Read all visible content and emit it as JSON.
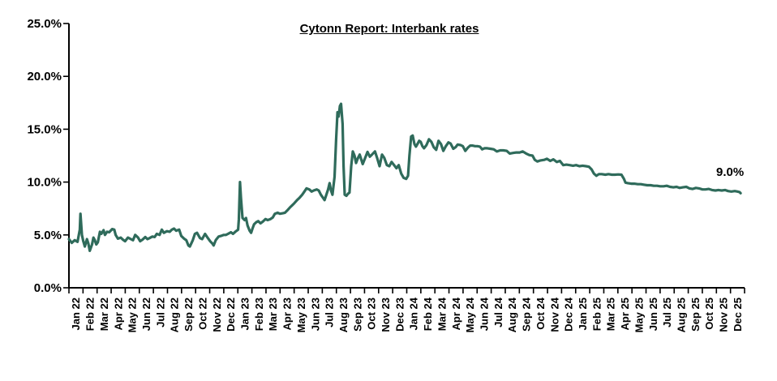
{
  "chart_data": {
    "type": "line",
    "title": "Cytonn Report: Interbank rates",
    "end_label": "9.0%",
    "xlabel": "",
    "ylabel": "",
    "ylim": [
      0,
      25
    ],
    "grid": false,
    "legend_position": "none",
    "line_color": "#2F6B5B",
    "axis_color": "#000000",
    "y_ticks": [
      "0.0%",
      "5.0%",
      "10.0%",
      "15.0%",
      "20.0%",
      "25.0%"
    ],
    "x_categories": [
      "Jan 22",
      "Feb 22",
      "Mar 22",
      "Apr 22",
      "May 22",
      "Jun 22",
      "Jul 22",
      "Aug 22",
      "Sep 22",
      "Oct 22",
      "Nov 22",
      "Dec 22",
      "Jan 23",
      "Feb 23",
      "Mar 23",
      "Apr 23",
      "May 23",
      "Jun 23",
      "Jul 23",
      "Aug 23",
      "Sep 23",
      "Oct 23",
      "Nov 23",
      "Dec 23",
      "Jan 24",
      "Feb 24",
      "Mar 24",
      "Apr 24",
      "May 24",
      "Jun 24",
      "Jul 24",
      "Aug 24",
      "Sep 24",
      "Oct 24",
      "Nov 24",
      "Dec 24",
      "Jan 25",
      "Feb 25",
      "Mar 25",
      "Apr 25",
      "May 25",
      "Jun 25",
      "Jul 25",
      "Aug 25",
      "Sep 25",
      "Oct 25",
      "Nov 25",
      "Dec 25"
    ],
    "x_unit": "months since Jan 2022 (fractional)",
    "y_unit": "percent",
    "series": [
      {
        "name": "Interbank rate",
        "points": [
          [
            0,
            4.6
          ],
          [
            0.2,
            4.25
          ],
          [
            0.41,
            4.5
          ],
          [
            0.61,
            4.35
          ],
          [
            0.77,
            5.5
          ],
          [
            0.82,
            7.0
          ],
          [
            0.92,
            5.0
          ],
          [
            1.02,
            4.4
          ],
          [
            1.13,
            3.9
          ],
          [
            1.28,
            4.6
          ],
          [
            1.38,
            4.2
          ],
          [
            1.48,
            3.5
          ],
          [
            1.64,
            4.1
          ],
          [
            1.74,
            4.75
          ],
          [
            1.84,
            4.5
          ],
          [
            1.94,
            4.1
          ],
          [
            2.05,
            4.3
          ],
          [
            2.2,
            5.3
          ],
          [
            2.3,
            5.1
          ],
          [
            2.46,
            5.45
          ],
          [
            2.56,
            5.0
          ],
          [
            2.71,
            5.3
          ],
          [
            2.86,
            5.25
          ],
          [
            3.07,
            5.55
          ],
          [
            3.22,
            5.5
          ],
          [
            3.32,
            5.0
          ],
          [
            3.48,
            4.65
          ],
          [
            3.68,
            4.75
          ],
          [
            3.84,
            4.55
          ],
          [
            3.99,
            4.4
          ],
          [
            4.19,
            4.75
          ],
          [
            4.4,
            4.6
          ],
          [
            4.55,
            4.5
          ],
          [
            4.71,
            5.0
          ],
          [
            4.91,
            4.75
          ],
          [
            5.06,
            4.4
          ],
          [
            5.22,
            4.55
          ],
          [
            5.42,
            4.8
          ],
          [
            5.58,
            4.6
          ],
          [
            5.73,
            4.7
          ],
          [
            5.93,
            4.85
          ],
          [
            6.09,
            4.8
          ],
          [
            6.24,
            5.1
          ],
          [
            6.44,
            5.0
          ],
          [
            6.6,
            5.5
          ],
          [
            6.75,
            5.2
          ],
          [
            6.96,
            5.35
          ],
          [
            7.16,
            5.3
          ],
          [
            7.31,
            5.5
          ],
          [
            7.47,
            5.6
          ],
          [
            7.62,
            5.4
          ],
          [
            7.83,
            5.5
          ],
          [
            7.98,
            4.9
          ],
          [
            8.18,
            4.65
          ],
          [
            8.34,
            4.5
          ],
          [
            8.49,
            4.0
          ],
          [
            8.59,
            3.9
          ],
          [
            8.8,
            4.5
          ],
          [
            8.95,
            5.1
          ],
          [
            9.1,
            5.2
          ],
          [
            9.31,
            4.7
          ],
          [
            9.46,
            4.6
          ],
          [
            9.67,
            5.1
          ],
          [
            9.82,
            4.8
          ],
          [
            10.03,
            4.4
          ],
          [
            10.18,
            4.2
          ],
          [
            10.28,
            4.0
          ],
          [
            10.43,
            4.5
          ],
          [
            10.64,
            4.85
          ],
          [
            10.79,
            4.9
          ],
          [
            11.0,
            5.0
          ],
          [
            11.15,
            5.0
          ],
          [
            11.3,
            5.1
          ],
          [
            11.51,
            5.25
          ],
          [
            11.66,
            5.1
          ],
          [
            11.82,
            5.3
          ],
          [
            12.02,
            5.5
          ],
          [
            12.07,
            6.5
          ],
          [
            12.15,
            10.0
          ],
          [
            12.22,
            8.5
          ],
          [
            12.33,
            6.6
          ],
          [
            12.48,
            6.4
          ],
          [
            12.58,
            6.6
          ],
          [
            12.69,
            5.9
          ],
          [
            12.84,
            5.4
          ],
          [
            12.94,
            5.2
          ],
          [
            13.04,
            5.6
          ],
          [
            13.15,
            6.0
          ],
          [
            13.3,
            6.2
          ],
          [
            13.45,
            6.3
          ],
          [
            13.61,
            6.1
          ],
          [
            13.81,
            6.3
          ],
          [
            13.96,
            6.5
          ],
          [
            14.12,
            6.4
          ],
          [
            14.32,
            6.5
          ],
          [
            14.48,
            6.65
          ],
          [
            14.63,
            7.0
          ],
          [
            14.83,
            7.1
          ],
          [
            14.99,
            7.0
          ],
          [
            15.19,
            7.05
          ],
          [
            15.35,
            7.1
          ],
          [
            15.5,
            7.3
          ],
          [
            15.7,
            7.6
          ],
          [
            15.86,
            7.8
          ],
          [
            16.01,
            8.0
          ],
          [
            16.21,
            8.3
          ],
          [
            16.37,
            8.5
          ],
          [
            16.57,
            8.8
          ],
          [
            16.73,
            9.1
          ],
          [
            16.88,
            9.4
          ],
          [
            17.08,
            9.3
          ],
          [
            17.24,
            9.1
          ],
          [
            17.39,
            9.2
          ],
          [
            17.6,
            9.3
          ],
          [
            17.75,
            9.2
          ],
          [
            17.9,
            8.8
          ],
          [
            18.06,
            8.5
          ],
          [
            18.16,
            8.3
          ],
          [
            18.26,
            8.7
          ],
          [
            18.41,
            9.3
          ],
          [
            18.52,
            9.9
          ],
          [
            18.62,
            9.2
          ],
          [
            18.72,
            8.8
          ],
          [
            18.87,
            10.5
          ],
          [
            18.98,
            14.0
          ],
          [
            19.08,
            16.6
          ],
          [
            19.16,
            16.2
          ],
          [
            19.25,
            17.2
          ],
          [
            19.33,
            17.4
          ],
          [
            19.44,
            15.5
          ],
          [
            19.51,
            11.5
          ],
          [
            19.59,
            8.8
          ],
          [
            19.71,
            8.7
          ],
          [
            19.83,
            8.9
          ],
          [
            19.93,
            9.0
          ],
          [
            20.05,
            11.5
          ],
          [
            20.17,
            12.9
          ],
          [
            20.29,
            12.5
          ],
          [
            20.4,
            11.8
          ],
          [
            20.51,
            12.2
          ],
          [
            20.66,
            12.6
          ],
          [
            20.87,
            11.7
          ],
          [
            21.02,
            12.2
          ],
          [
            21.21,
            12.85
          ],
          [
            21.38,
            12.4
          ],
          [
            21.53,
            12.6
          ],
          [
            21.74,
            12.9
          ],
          [
            21.89,
            12.3
          ],
          [
            22.07,
            11.5
          ],
          [
            22.24,
            12.6
          ],
          [
            22.4,
            12.3
          ],
          [
            22.59,
            11.6
          ],
          [
            22.76,
            11.5
          ],
          [
            22.92,
            11.9
          ],
          [
            23.1,
            11.6
          ],
          [
            23.27,
            11.3
          ],
          [
            23.43,
            11.6
          ],
          [
            23.61,
            10.8
          ],
          [
            23.78,
            10.4
          ],
          [
            23.96,
            10.3
          ],
          [
            24.09,
            10.6
          ],
          [
            24.19,
            12.5
          ],
          [
            24.31,
            14.3
          ],
          [
            24.42,
            14.4
          ],
          [
            24.55,
            13.6
          ],
          [
            24.65,
            13.35
          ],
          [
            24.76,
            13.6
          ],
          [
            24.88,
            13.9
          ],
          [
            24.99,
            13.8
          ],
          [
            25.11,
            13.4
          ],
          [
            25.23,
            13.2
          ],
          [
            25.4,
            13.5
          ],
          [
            25.58,
            14.05
          ],
          [
            25.75,
            13.8
          ],
          [
            25.92,
            13.3
          ],
          [
            26.09,
            13.05
          ],
          [
            26.26,
            13.9
          ],
          [
            26.43,
            13.6
          ],
          [
            26.6,
            12.95
          ],
          [
            26.78,
            13.4
          ],
          [
            26.96,
            13.75
          ],
          [
            27.11,
            13.65
          ],
          [
            27.31,
            13.15
          ],
          [
            27.47,
            13.3
          ],
          [
            27.62,
            13.55
          ],
          [
            27.83,
            13.5
          ],
          [
            27.98,
            13.4
          ],
          [
            28.16,
            12.95
          ],
          [
            28.34,
            13.25
          ],
          [
            28.51,
            13.45
          ],
          [
            28.67,
            13.45
          ],
          [
            28.85,
            13.4
          ],
          [
            29.02,
            13.4
          ],
          [
            29.2,
            13.35
          ],
          [
            29.36,
            13.1
          ],
          [
            29.53,
            13.2
          ],
          [
            29.72,
            13.2
          ],
          [
            29.94,
            13.15
          ],
          [
            30.18,
            13.1
          ],
          [
            30.4,
            12.9
          ],
          [
            30.64,
            13.0
          ],
          [
            30.86,
            13.0
          ],
          [
            31.1,
            12.95
          ],
          [
            31.32,
            12.7
          ],
          [
            31.55,
            12.75
          ],
          [
            31.78,
            12.8
          ],
          [
            32.02,
            12.8
          ],
          [
            32.24,
            12.9
          ],
          [
            32.48,
            12.7
          ],
          [
            32.71,
            12.55
          ],
          [
            32.94,
            12.5
          ],
          [
            33.1,
            12.1
          ],
          [
            33.28,
            11.95
          ],
          [
            33.5,
            12.05
          ],
          [
            33.76,
            12.1
          ],
          [
            33.96,
            12.2
          ],
          [
            34.2,
            12.0
          ],
          [
            34.42,
            12.15
          ],
          [
            34.66,
            11.9
          ],
          [
            34.88,
            12.0
          ],
          [
            35.12,
            11.6
          ],
          [
            35.34,
            11.65
          ],
          [
            35.58,
            11.6
          ],
          [
            35.81,
            11.55
          ],
          [
            36.03,
            11.6
          ],
          [
            36.27,
            11.5
          ],
          [
            36.49,
            11.55
          ],
          [
            36.73,
            11.5
          ],
          [
            36.95,
            11.45
          ],
          [
            37.13,
            11.2
          ],
          [
            37.3,
            10.8
          ],
          [
            37.47,
            10.6
          ],
          [
            37.65,
            10.75
          ],
          [
            37.85,
            10.75
          ],
          [
            38.11,
            10.7
          ],
          [
            38.33,
            10.75
          ],
          [
            38.57,
            10.7
          ],
          [
            38.79,
            10.7
          ],
          [
            39.03,
            10.72
          ],
          [
            39.25,
            10.7
          ],
          [
            39.43,
            10.3
          ],
          [
            39.54,
            9.95
          ],
          [
            39.71,
            9.9
          ],
          [
            39.95,
            9.85
          ],
          [
            40.17,
            9.85
          ],
          [
            40.41,
            9.8
          ],
          [
            40.63,
            9.8
          ],
          [
            40.87,
            9.75
          ],
          [
            41.09,
            9.7
          ],
          [
            41.33,
            9.7
          ],
          [
            41.55,
            9.65
          ],
          [
            41.78,
            9.65
          ],
          [
            42.01,
            9.6
          ],
          [
            42.25,
            9.6
          ],
          [
            42.47,
            9.65
          ],
          [
            42.71,
            9.55
          ],
          [
            42.94,
            9.5
          ],
          [
            43.17,
            9.55
          ],
          [
            43.38,
            9.45
          ],
          [
            43.62,
            9.5
          ],
          [
            43.86,
            9.55
          ],
          [
            44.09,
            9.4
          ],
          [
            44.3,
            9.35
          ],
          [
            44.54,
            9.45
          ],
          [
            44.77,
            9.4
          ],
          [
            45.01,
            9.3
          ],
          [
            45.22,
            9.3
          ],
          [
            45.46,
            9.35
          ],
          [
            45.69,
            9.25
          ],
          [
            45.93,
            9.2
          ],
          [
            46.14,
            9.25
          ],
          [
            46.38,
            9.2
          ],
          [
            46.61,
            9.25
          ],
          [
            46.83,
            9.15
          ],
          [
            47.06,
            9.1
          ],
          [
            47.3,
            9.15
          ],
          [
            47.5,
            9.1
          ],
          [
            47.65,
            9.05
          ],
          [
            47.72,
            8.95
          ]
        ]
      }
    ]
  }
}
